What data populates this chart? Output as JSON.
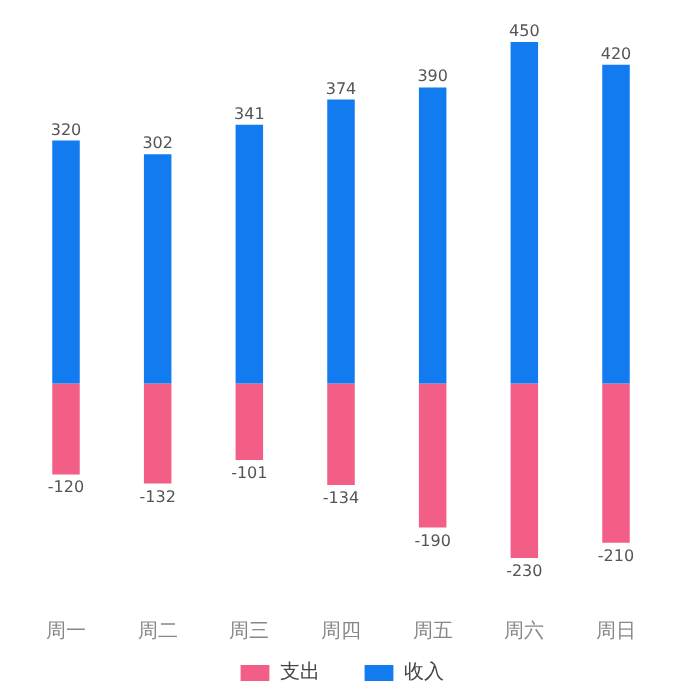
{
  "chart_data": {
    "type": "bar",
    "stacked": true,
    "categories": [
      "周一",
      "周二",
      "周三",
      "周四",
      "周五",
      "周六",
      "周日"
    ],
    "series": [
      {
        "name": "支出",
        "color": "#f25e86",
        "values": [
          -120,
          -132,
          -101,
          -134,
          -190,
          -230,
          -210
        ]
      },
      {
        "name": "收入",
        "color": "#127bf0",
        "values": [
          320,
          302,
          341,
          374,
          390,
          450,
          420
        ]
      }
    ],
    "data_labels": true,
    "legend": "bottom",
    "grid": false
  }
}
